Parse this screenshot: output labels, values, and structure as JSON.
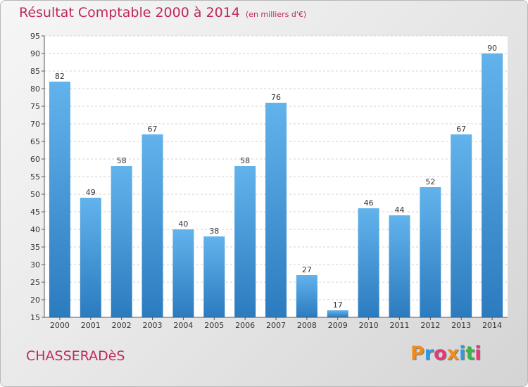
{
  "header": {
    "title": "Résultat Comptable 2000 à 2014",
    "subtitle": "(en milliers d'€)"
  },
  "footer": {
    "commune": "CHASSERADèS",
    "logo": "Proxiti",
    "logo_colors": [
      "#f08c1e",
      "#2e9be0",
      "#e03a78",
      "#f08c1e",
      "#2e9be0",
      "#39b54a",
      "#e03a78"
    ]
  },
  "chart_data": {
    "type": "bar",
    "title": "Résultat Comptable 2000 à 2014",
    "categories": [
      "2000",
      "2001",
      "2002",
      "2003",
      "2004",
      "2005",
      "2006",
      "2007",
      "2008",
      "2009",
      "2010",
      "2011",
      "2012",
      "2013",
      "2014"
    ],
    "values": [
      82,
      49,
      58,
      67,
      40,
      38,
      58,
      76,
      27,
      17,
      46,
      44,
      52,
      67,
      90
    ],
    "ylim": [
      15,
      95
    ],
    "yticks": [
      15,
      20,
      25,
      30,
      35,
      40,
      45,
      50,
      55,
      60,
      65,
      70,
      75,
      80,
      85,
      90,
      95
    ],
    "grid": true,
    "bar_color_top": "#62b3ec",
    "bar_color_bottom": "#2b7bbf",
    "plot_background": "#ffffff"
  }
}
